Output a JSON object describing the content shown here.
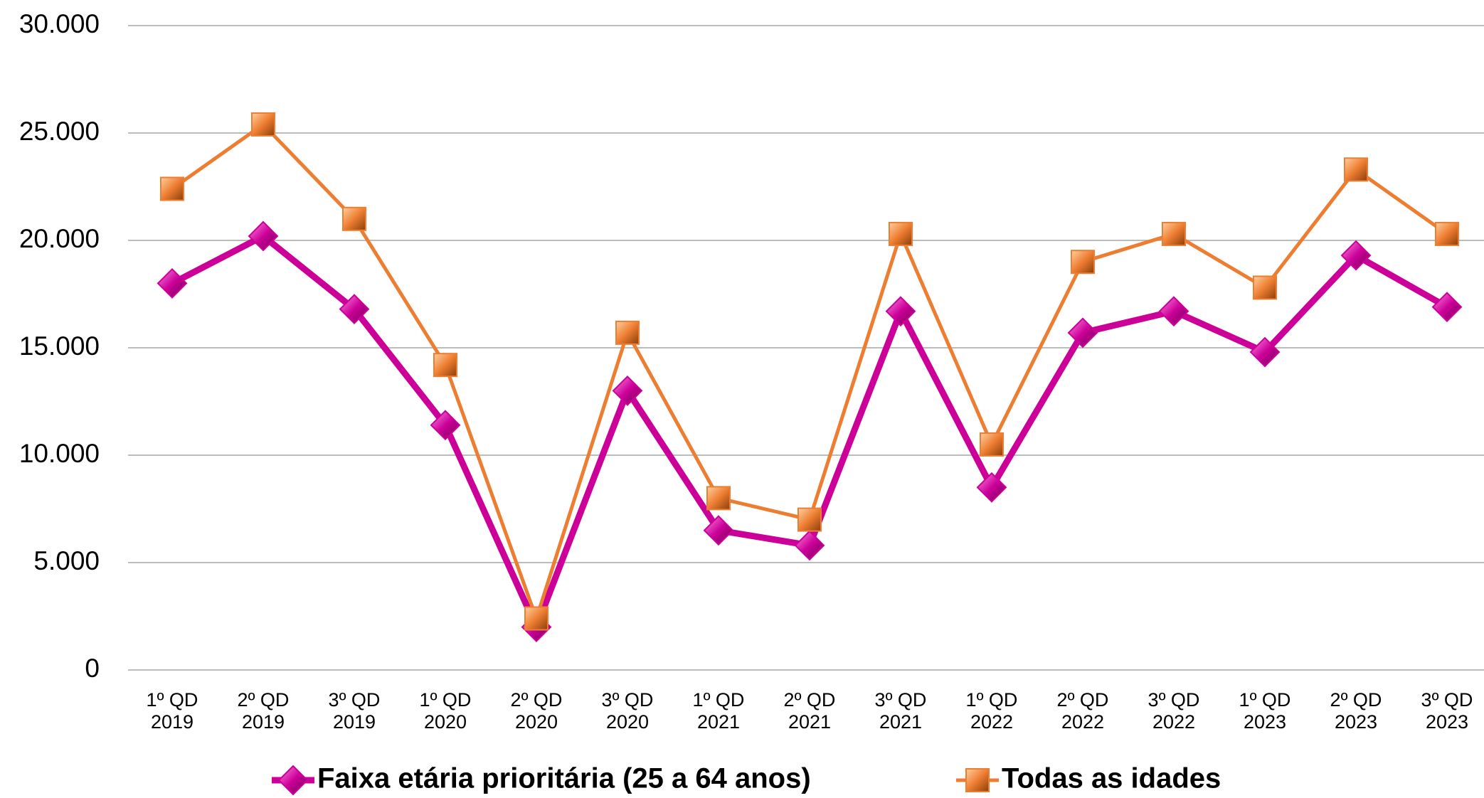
{
  "chart_data": {
    "type": "line",
    "categories": [
      "1º QD\n2019",
      "2º QD\n2019",
      "3º QD\n2019",
      "1º QD\n2020",
      "2º QD\n2020",
      "3º QD\n2020",
      "1º QD\n2021",
      "2º QD\n2021",
      "3º QD\n2021",
      "1º QD\n2022",
      "2º QD\n2022",
      "3º QD\n2022",
      "1º QD\n2023",
      "2º QD\n2023",
      "3º QD\n2023"
    ],
    "series": [
      {
        "name": "Faixa etária prioritária (25 a 64 anos)",
        "color": "#cc0099",
        "marker": "diamond",
        "values": [
          18000,
          20200,
          16800,
          11400,
          2000,
          13000,
          6500,
          5800,
          16700,
          8500,
          15700,
          16700,
          14800,
          19300,
          16900
        ]
      },
      {
        "name": "Todas as idades",
        "color": "#ed7d31",
        "marker": "square",
        "values": [
          22400,
          25400,
          21000,
          14200,
          2400,
          15700,
          8000,
          7000,
          20300,
          10500,
          19000,
          20300,
          17800,
          23300,
          20300
        ]
      }
    ],
    "ylim": [
      0,
      30000
    ],
    "yticks": [
      0,
      {
        "value": 5000,
        "label": "5.000"
      },
      {
        "value": 10000,
        "label": "10.000"
      },
      {
        "value": 15000,
        "label": "15.000"
      },
      {
        "value": 20000,
        "label": "20.000"
      },
      {
        "value": 25000,
        "label": "25.000"
      },
      {
        "value": 30000,
        "label": "30.000"
      }
    ],
    "grid": true,
    "legend": "bottom"
  }
}
